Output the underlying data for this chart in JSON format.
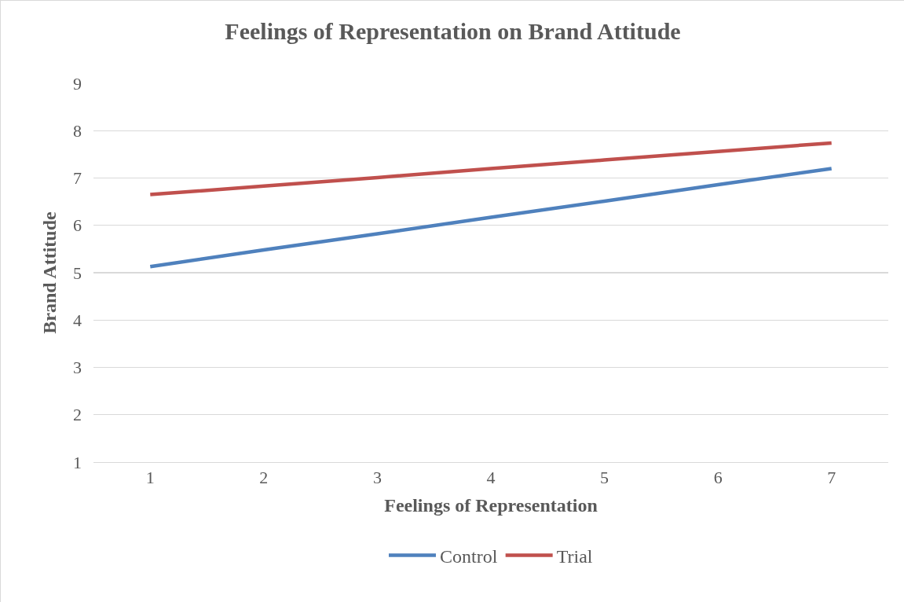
{
  "chart_data": {
    "type": "line",
    "title": "Feelings of Representation on Brand Attitude",
    "xlabel": "Feelings of Representation",
    "ylabel": "Brand Attitude",
    "categories": [
      "1",
      "2",
      "3",
      "4",
      "5",
      "6",
      "7"
    ],
    "series": [
      {
        "name": "Control",
        "color": "#4f81bd",
        "values": [
          5.13,
          5.48,
          5.82,
          6.17,
          6.51,
          6.86,
          7.2
        ]
      },
      {
        "name": "Trial",
        "color": "#c0504d",
        "values": [
          6.65,
          6.83,
          7.01,
          7.2,
          7.38,
          7.56,
          7.74
        ]
      }
    ],
    "ylim": [
      1,
      9
    ],
    "yticks": [
      1,
      2,
      3,
      4,
      5,
      6,
      7,
      8,
      9
    ],
    "grid": "y",
    "legend": "bottom",
    "marker": "none",
    "line_style": "solid"
  }
}
